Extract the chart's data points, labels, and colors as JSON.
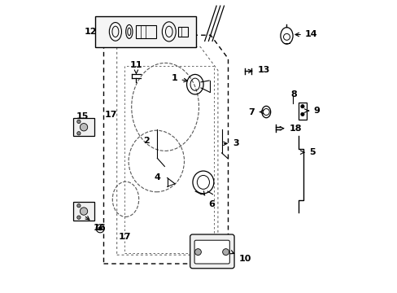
{
  "bg_color": "#ffffff",
  "line_color": "#000000",
  "dashed_color": "#555555",
  "figsize": [
    4.89,
    3.6
  ],
  "dpi": 100
}
